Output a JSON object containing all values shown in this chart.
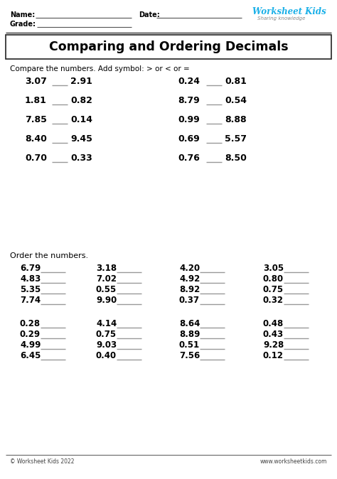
{
  "bg_color": "#ffffff",
  "title": "Comparing and Ordering Decimals",
  "compare_instruction": "Compare the numbers. Add symbol: > or < or =",
  "compare_pairs_left": [
    [
      "3.07",
      "2.91"
    ],
    [
      "1.81",
      "0.82"
    ],
    [
      "7.85",
      "0.14"
    ],
    [
      "8.40",
      "9.45"
    ],
    [
      "0.70",
      "0.33"
    ]
  ],
  "compare_pairs_right": [
    [
      "0.24",
      "0.81"
    ],
    [
      "8.79",
      "0.54"
    ],
    [
      "0.99",
      "8.88"
    ],
    [
      "0.69",
      "5.57"
    ],
    [
      "0.76",
      "8.50"
    ]
  ],
  "order_instruction": "Order the numbers.",
  "order_group1": [
    [
      "6.79",
      "3.18",
      "4.20",
      "3.05"
    ],
    [
      "4.83",
      "7.02",
      "4.92",
      "0.80"
    ],
    [
      "5.35",
      "0.55",
      "8.92",
      "0.75"
    ],
    [
      "7.74",
      "9.90",
      "0.37",
      "0.32"
    ]
  ],
  "order_group2": [
    [
      "0.28",
      "4.14",
      "8.64",
      "0.48"
    ],
    [
      "0.29",
      "0.75",
      "8.89",
      "0.43"
    ],
    [
      "4.99",
      "9.03",
      "0.51",
      "9.28"
    ],
    [
      "6.45",
      "0.40",
      "7.56",
      "0.12"
    ]
  ],
  "footer_left": "© Worksheet Kids 2022",
  "footer_right": "www.worksheetkids.com",
  "name_label": "Name:",
  "grade_label": "Grade:",
  "date_label": "Date:",
  "logo_line1": "Worksheet Kids",
  "logo_line2": "Sharing knowledge"
}
